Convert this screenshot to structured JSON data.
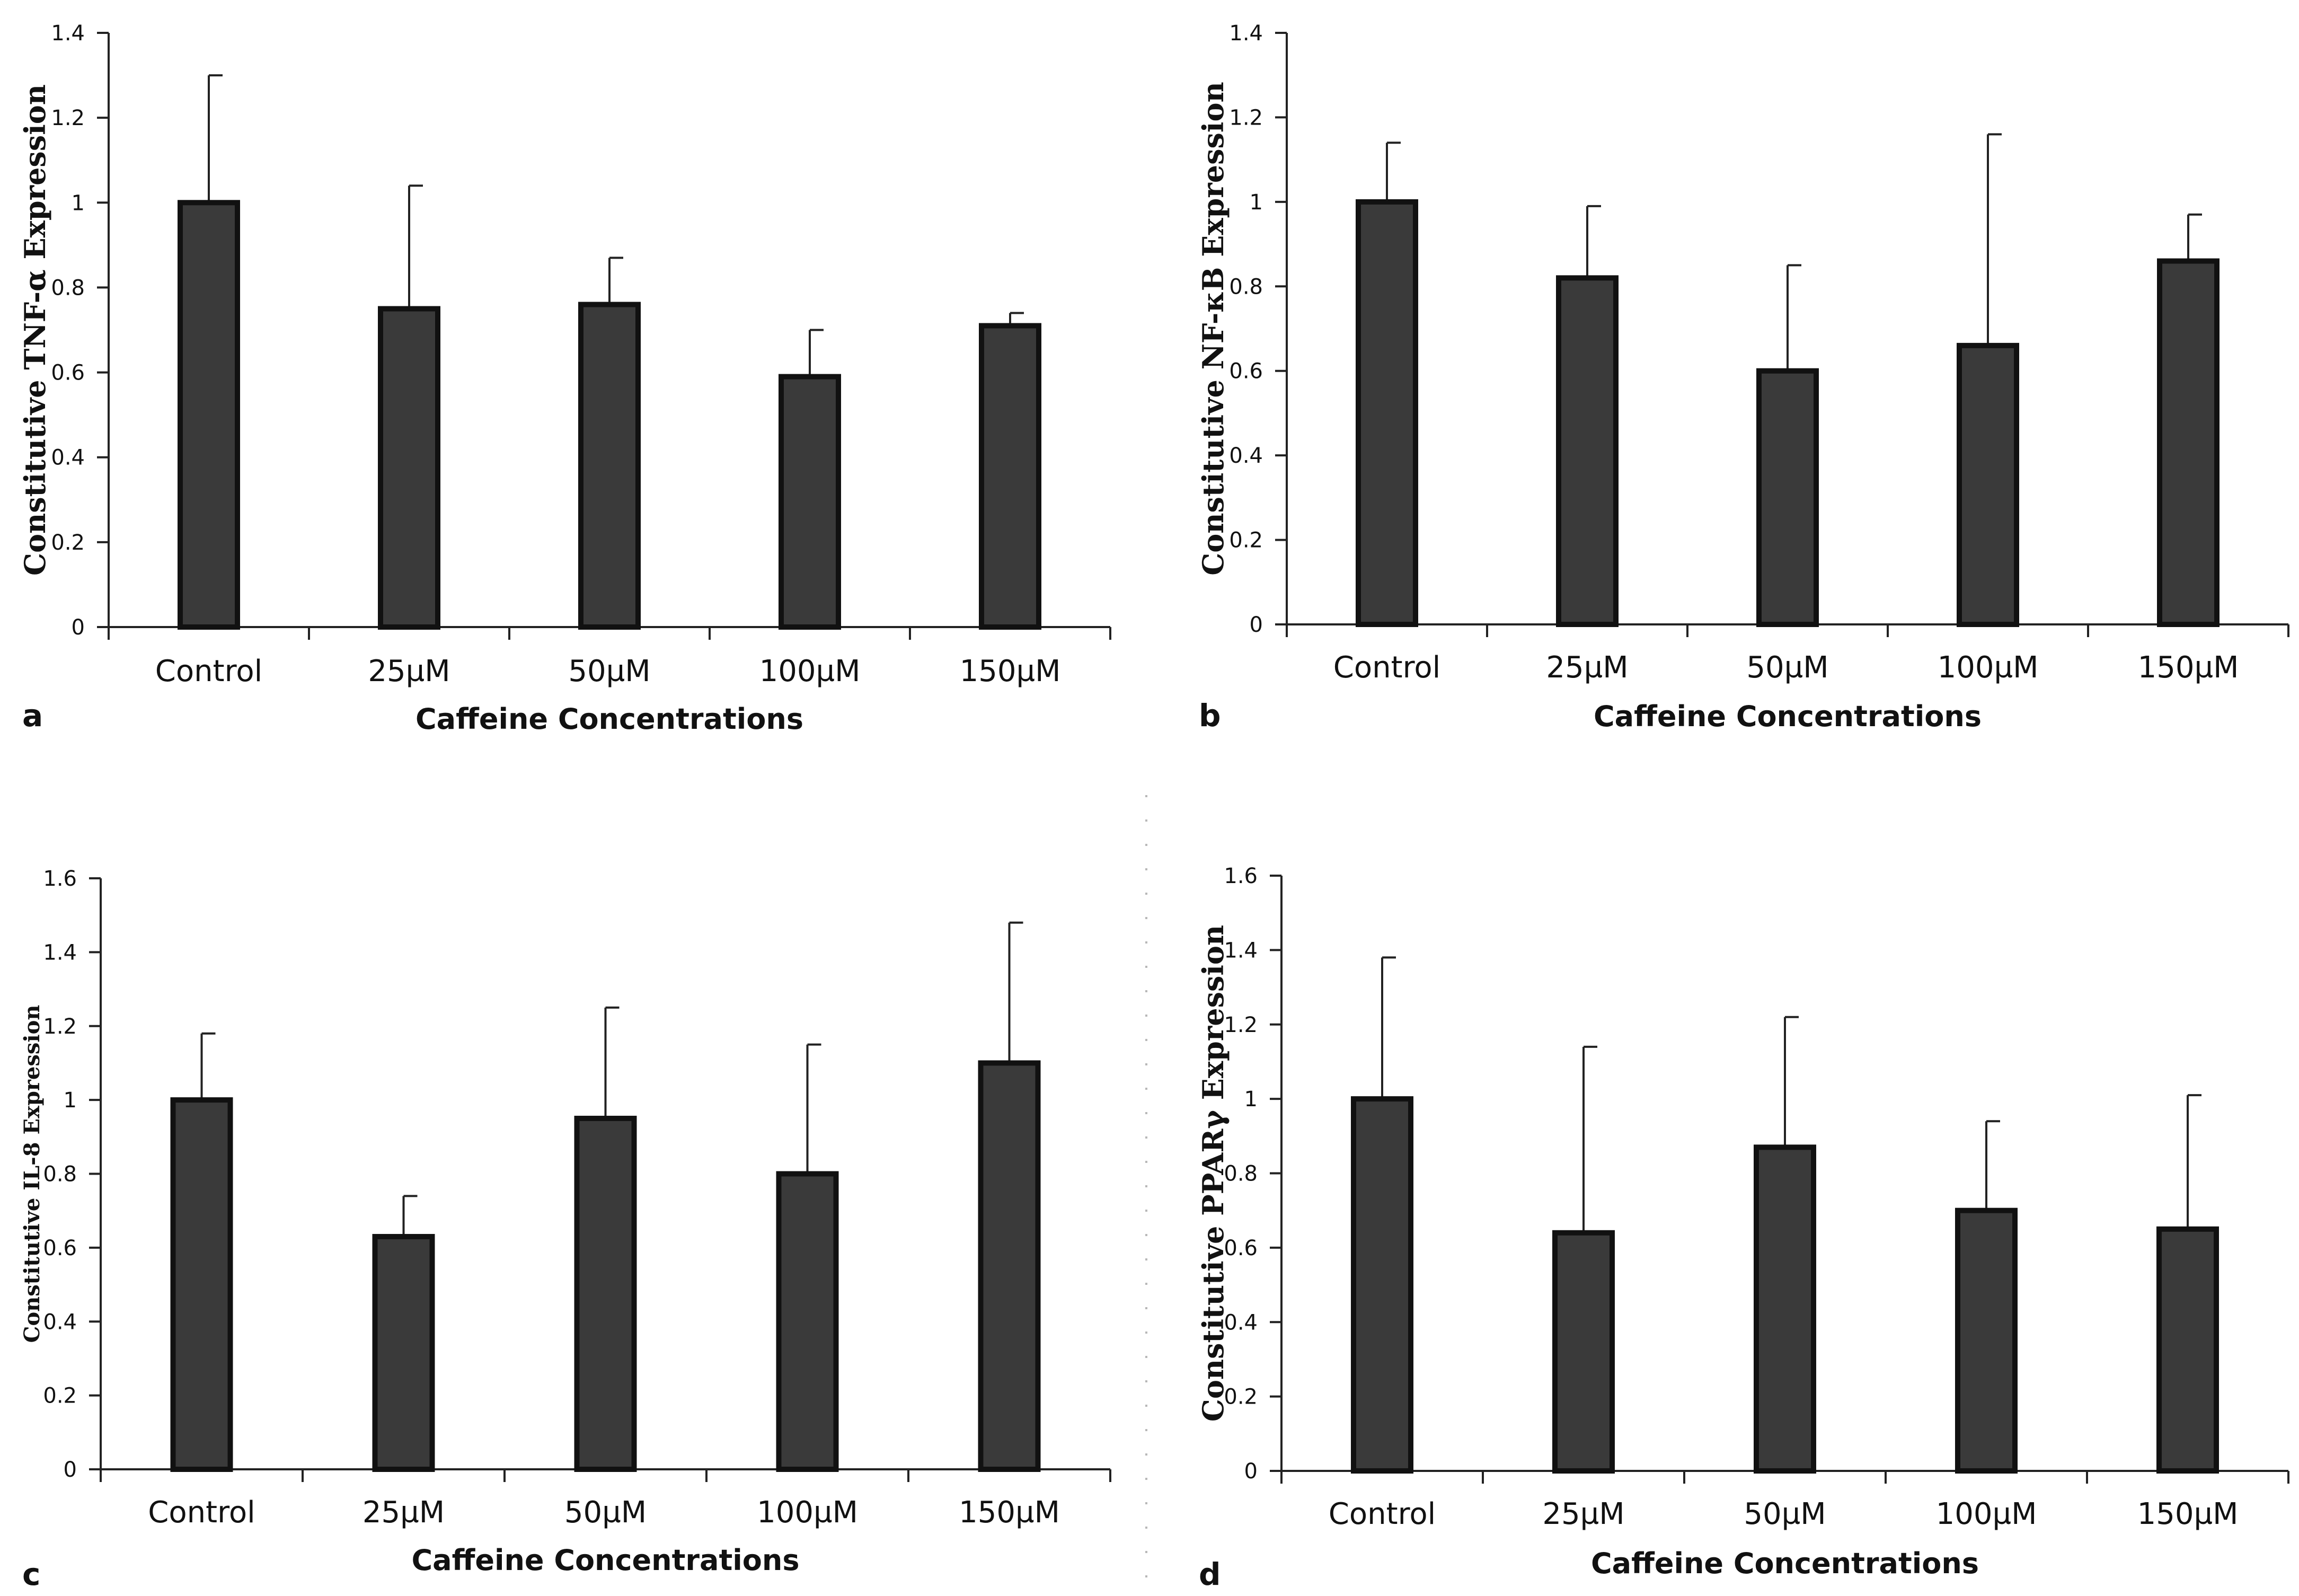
{
  "figure": {
    "bar_color": "#3a3a3a",
    "bar_edge_color": "#111111",
    "axis_color": "#222222"
  },
  "chart_data": [
    {
      "type": "bar",
      "panel": "a",
      "categories": [
        "Control",
        "25µM",
        "50µM",
        "100µM",
        "150µM"
      ],
      "values": [
        1.0,
        0.75,
        0.76,
        0.59,
        0.71
      ],
      "errors": [
        0.3,
        0.29,
        0.11,
        0.11,
        0.03
      ],
      "xlabel": "Caffeine Concentrations",
      "ylabel": "Constitutive TNF-α Expression",
      "ylim": [
        0,
        1.4
      ],
      "yticks": [
        "0",
        "0.2",
        "0.4",
        "0.6",
        "0.8",
        "1",
        "1.2",
        "1.4"
      ],
      "grid": false,
      "legend": "none"
    },
    {
      "type": "bar",
      "panel": "b",
      "categories": [
        "Control",
        "25µM",
        "50µM",
        "100µM",
        "150µM"
      ],
      "values": [
        1.0,
        0.82,
        0.6,
        0.66,
        0.86
      ],
      "errors": [
        0.14,
        0.17,
        0.25,
        0.5,
        0.11
      ],
      "xlabel": "Caffeine Concentrations",
      "ylabel": "Constitutive NF-κB Expression",
      "ylim": [
        0,
        1.4
      ],
      "yticks": [
        "0",
        "0.2",
        "0.4",
        "0.6",
        "0.8",
        "1",
        "1.2",
        "1.4"
      ],
      "grid": false,
      "legend": "none"
    },
    {
      "type": "bar",
      "panel": "c",
      "categories": [
        "Control",
        "25µM",
        "50µM",
        "100µM",
        "150µM"
      ],
      "values": [
        1.0,
        0.63,
        0.95,
        0.8,
        1.1
      ],
      "errors": [
        0.18,
        0.11,
        0.3,
        0.35,
        0.38
      ],
      "xlabel": "Caffeine Concentrations",
      "ylabel": "Constitutive IL-8 Expression",
      "ylim": [
        0,
        1.6
      ],
      "yticks": [
        "0",
        "0.2",
        "0.4",
        "0.6",
        "0.8",
        "1",
        "1.2",
        "1.4",
        "1.6"
      ],
      "grid": false,
      "legend": "none"
    },
    {
      "type": "bar",
      "panel": "d",
      "categories": [
        "Control",
        "25µM",
        "50µM",
        "100µM",
        "150µM"
      ],
      "values": [
        1.0,
        0.64,
        0.87,
        0.7,
        0.65
      ],
      "errors": [
        0.38,
        0.5,
        0.35,
        0.24,
        0.36
      ],
      "xlabel": "Caffeine Concentrations",
      "ylabel": "Constitutive PPARγ Expression",
      "ylim": [
        0,
        1.6
      ],
      "yticks": [
        "0",
        "0.2",
        "0.4",
        "0.6",
        "0.8",
        "1",
        "1.2",
        "1.4",
        "1.6"
      ],
      "grid": false,
      "legend": "none"
    }
  ]
}
